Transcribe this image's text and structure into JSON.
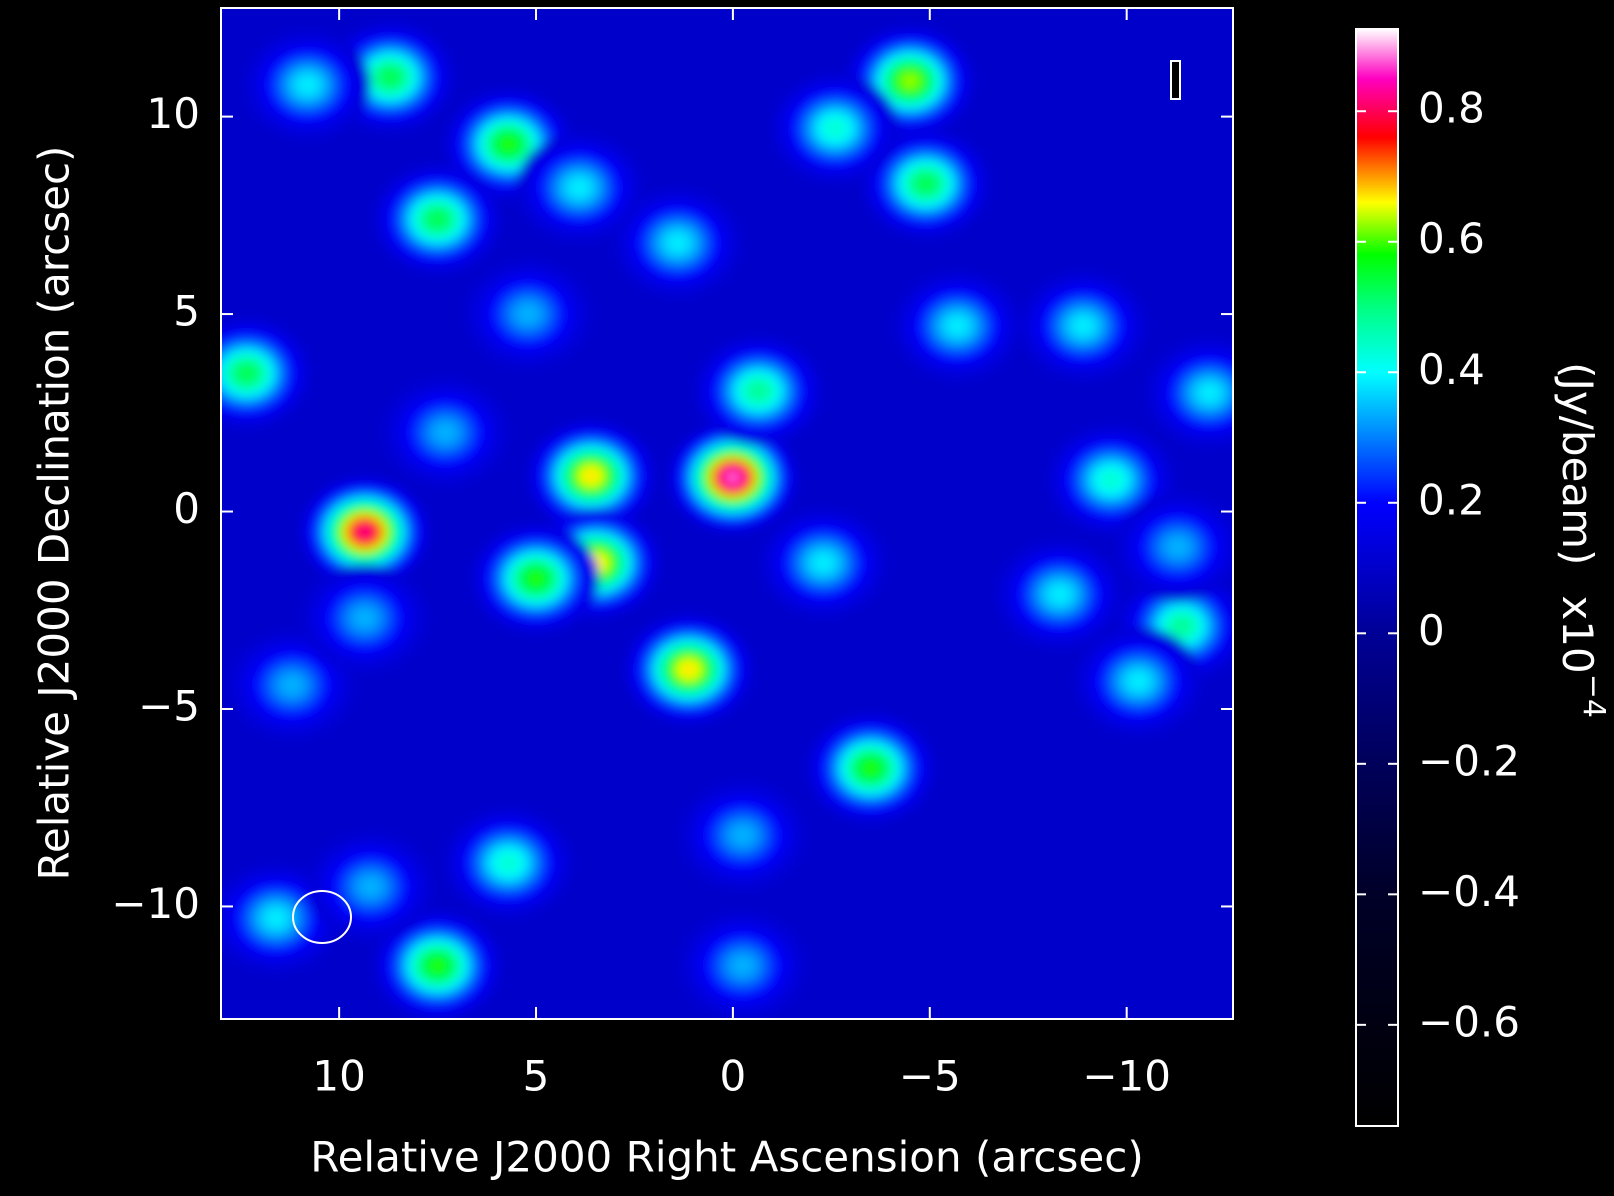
{
  "chart_data": {
    "type": "heatmap",
    "x_label": "Relative J2000 Right Ascension (arcsec)",
    "y_label": "Relative J2000 Declination (arcsec)",
    "xlim": [
      13.0,
      -12.7
    ],
    "ylim": [
      -12.85,
      12.75
    ],
    "xticks": [
      10,
      5,
      0,
      {
        "value": -5,
        "label": "−5"
      },
      {
        "value": -10,
        "label": "−10"
      }
    ],
    "yticks": [
      {
        "value": -10,
        "label": "−10"
      },
      {
        "value": -5,
        "label": "−5"
      },
      0,
      5,
      10
    ],
    "background_level": 0.1,
    "sources": {
      "x": [
        0,
        9.35,
        3.6,
        3.47,
        5.0,
        1.12,
        -4.5,
        -3.5,
        7.5,
        -4.9,
        5.7,
        7.5,
        8.7,
        12.35,
        -0.65,
        -11.4,
        -2.6,
        -9.6,
        -12.1,
        -8.3,
        5.7,
        -5.7,
        -8.9,
        1.4,
        11.6,
        -10.3,
        3.9,
        11.2,
        -2.3,
        -0.25,
        -11.3,
        7.3,
        5.2,
        9.2,
        9.35,
        -0.25,
        10.8
      ],
      "y": [
        0.86,
        -0.52,
        0.9,
        -1.3,
        -1.7,
        -4.0,
        10.9,
        -6.5,
        -11.5,
        8.3,
        9.3,
        7.4,
        11.0,
        3.5,
        3.05,
        -2.9,
        9.7,
        0.8,
        3.0,
        -2.1,
        -8.9,
        4.7,
        4.7,
        6.8,
        -10.3,
        -4.3,
        8.2,
        -4.4,
        -1.3,
        -11.5,
        -0.9,
        2.0,
        5.0,
        -9.5,
        -2.7,
        -8.2,
        10.8
      ],
      "values": [
        0.9,
        0.85,
        0.7,
        0.7,
        0.6,
        0.7,
        0.65,
        0.6,
        0.6,
        0.55,
        0.6,
        0.55,
        0.55,
        0.55,
        0.5,
        0.5,
        0.45,
        0.45,
        0.4,
        0.4,
        0.45,
        0.4,
        0.4,
        0.4,
        0.4,
        0.4,
        0.4,
        0.35,
        0.4,
        0.35,
        0.35,
        0.35,
        0.35,
        0.35,
        0.35,
        0.35,
        0.4
      ]
    },
    "colorbar": {
      "label": "(Jy/beam)",
      "scale": "x10",
      "scale_exponent": "−4",
      "ylim": [
        -0.755,
        0.926
      ],
      "yticks": [
        {
          "value": -0.6,
          "label": "−0.6"
        },
        {
          "value": -0.4,
          "label": "−0.4"
        },
        {
          "value": -0.2,
          "label": "−0.2"
        },
        0,
        0.2,
        0.4,
        0.6,
        0.8
      ],
      "colormap": [
        {
          "value": -0.755,
          "color": "#000000"
        },
        {
          "value": -0.4,
          "color": "#000028"
        },
        {
          "value": -0.2,
          "color": "#00005a"
        },
        {
          "value": 0,
          "color": "#000096"
        },
        {
          "value": 0.2,
          "color": "#0000ff"
        },
        {
          "value": 0.3,
          "color": "#0080ff"
        },
        {
          "value": 0.4,
          "color": "#00ffff"
        },
        {
          "value": 0.5,
          "color": "#00ff80"
        },
        {
          "value": 0.58,
          "color": "#00ff00"
        },
        {
          "value": 0.66,
          "color": "#ffff00"
        },
        {
          "value": 0.76,
          "color": "#ff0000"
        },
        {
          "value": 0.85,
          "color": "#ff00c0"
        },
        {
          "value": 0.926,
          "color": "#ffffff"
        }
      ]
    }
  }
}
